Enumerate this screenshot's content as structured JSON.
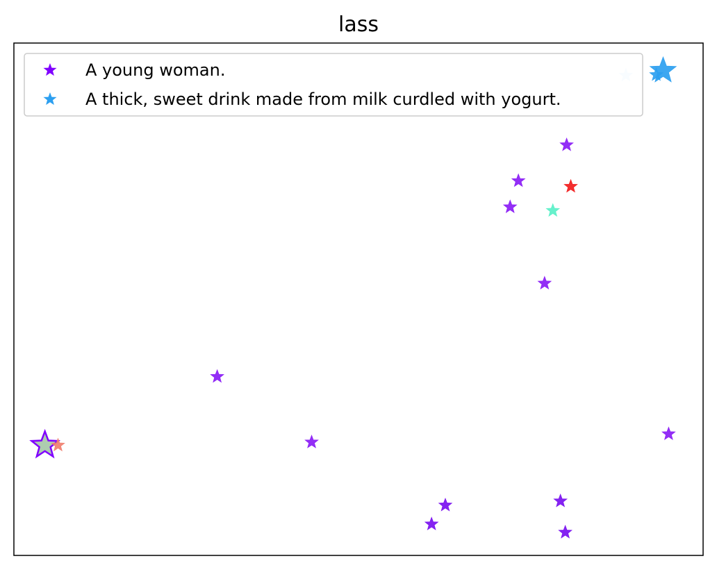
{
  "chart_data": {
    "type": "scatter",
    "title": "lass",
    "xlabel": "",
    "ylabel": "",
    "xlim": [
      0,
      100
    ],
    "ylim": [
      0,
      100
    ],
    "grid": false,
    "axis_ticks": false,
    "legend": {
      "placement": "top-left",
      "entries": [
        {
          "label": "A young woman.",
          "color": "#8000ff",
          "marker": "star"
        },
        {
          "label": "A thick, sweet drink made from milk curdled with yogurt.",
          "color": "#2c9ff0",
          "marker": "star"
        }
      ]
    },
    "series": [
      {
        "name": "A young woman.",
        "color": "#8000ff",
        "marker": "star",
        "points": [
          {
            "x": 80.2,
            "y": 80.1,
            "size": "small",
            "color": "#8a1cf5"
          },
          {
            "x": 73.2,
            "y": 73.1,
            "size": "small",
            "color": "#8a1cf5"
          },
          {
            "x": 72.0,
            "y": 68.0,
            "size": "small",
            "color": "#8a1cf5"
          },
          {
            "x": 77.0,
            "y": 53.1,
            "size": "small",
            "color": "#8a1cf5"
          },
          {
            "x": 29.5,
            "y": 34.9,
            "size": "small",
            "color": "#8a1cf5"
          },
          {
            "x": 43.2,
            "y": 22.1,
            "size": "small",
            "color": "#8a1cf5"
          },
          {
            "x": 95.0,
            "y": 23.7,
            "size": "small",
            "color": "#8a1cf5"
          },
          {
            "x": 62.6,
            "y": 9.8,
            "size": "small",
            "color": "#7a10f0"
          },
          {
            "x": 60.6,
            "y": 6.1,
            "size": "small",
            "color": "#7a10f0"
          },
          {
            "x": 79.3,
            "y": 10.6,
            "size": "small",
            "color": "#7a10f0"
          },
          {
            "x": 80.0,
            "y": 4.5,
            "size": "small",
            "color": "#7a10f0"
          },
          {
            "x": 4.5,
            "y": 21.5,
            "size": "large",
            "color": "#a6c8a8",
            "edge": "#8000ff"
          }
        ]
      },
      {
        "name": "A thick, sweet drink made from milk curdled with yogurt.",
        "color": "#2c9ff0",
        "marker": "star",
        "points": [
          {
            "x": 94.2,
            "y": 94.6,
            "size": "large",
            "color": "#2c9ff0"
          },
          {
            "x": 93.2,
            "y": 93.8,
            "size": "small",
            "color": "#2c9ff0"
          },
          {
            "x": 88.8,
            "y": 93.7,
            "size": "small",
            "color": "#cce6fb"
          }
        ]
      },
      {
        "name": "",
        "color": "#ff1a1a",
        "marker": "star",
        "points": [
          {
            "x": 80.8,
            "y": 72.0,
            "size": "small",
            "color": "#f21c1c"
          },
          {
            "x": 6.4,
            "y": 21.5,
            "size": "small",
            "color": "#f07f6f"
          }
        ]
      },
      {
        "name": "",
        "color": "#4df0c8",
        "marker": "star",
        "points": [
          {
            "x": 78.2,
            "y": 67.3,
            "size": "small",
            "color": "#5af0c8"
          }
        ]
      }
    ]
  }
}
